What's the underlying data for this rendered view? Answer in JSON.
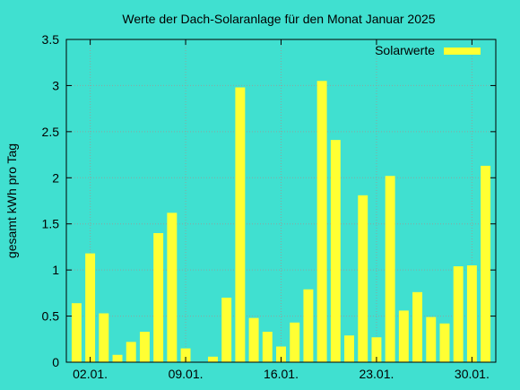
{
  "colors": {
    "background": "#40e0d0",
    "bar": "#ffff33",
    "text": "#000000",
    "grid": "#8aa6a0"
  },
  "chart_data": {
    "type": "bar",
    "title": "Werte der Dach-Solaranlage für den Monat Januar 2025",
    "xlabel": "",
    "ylabel": "gesamt kWh pro Tag",
    "grid": true,
    "legend": {
      "position": "top-right",
      "entries": [
        "Solarwerte"
      ]
    },
    "ylim": [
      0,
      3.5
    ],
    "yticks": [
      {
        "value": 0,
        "label": "0"
      },
      {
        "value": 0.5,
        "label": "0.5"
      },
      {
        "value": 1,
        "label": "1"
      },
      {
        "value": 1.5,
        "label": "1.5"
      },
      {
        "value": 2,
        "label": "2"
      },
      {
        "value": 2.5,
        "label": "2.5"
      },
      {
        "value": 3,
        "label": "3"
      },
      {
        "value": 3.5,
        "label": "3.5"
      }
    ],
    "xticks": [
      "02.01.",
      "09.01.",
      "16.01.",
      "23.01.",
      "30.01."
    ],
    "categories": [
      "01.01.",
      "02.01.",
      "03.01.",
      "04.01.",
      "05.01.",
      "06.01.",
      "07.01.",
      "08.01.",
      "09.01.",
      "10.01.",
      "11.01.",
      "12.01.",
      "13.01.",
      "14.01.",
      "15.01.",
      "16.01.",
      "17.01.",
      "18.01.",
      "19.01.",
      "20.01.",
      "21.01.",
      "22.01.",
      "23.01.",
      "24.01.",
      "25.01.",
      "26.01.",
      "27.01.",
      "28.01.",
      "29.01.",
      "30.01.",
      "31.01."
    ],
    "series": [
      {
        "name": "Solarwerte",
        "color": "#ffff33",
        "values": [
          0.64,
          1.18,
          0.53,
          0.08,
          0.22,
          0.33,
          1.4,
          1.62,
          0.15,
          0.0,
          0.06,
          0.7,
          2.98,
          0.48,
          0.33,
          0.17,
          0.43,
          0.79,
          3.05,
          2.41,
          0.29,
          1.81,
          0.27,
          2.02,
          0.56,
          0.76,
          0.49,
          0.42,
          1.04,
          1.05,
          2.13
        ]
      }
    ]
  }
}
